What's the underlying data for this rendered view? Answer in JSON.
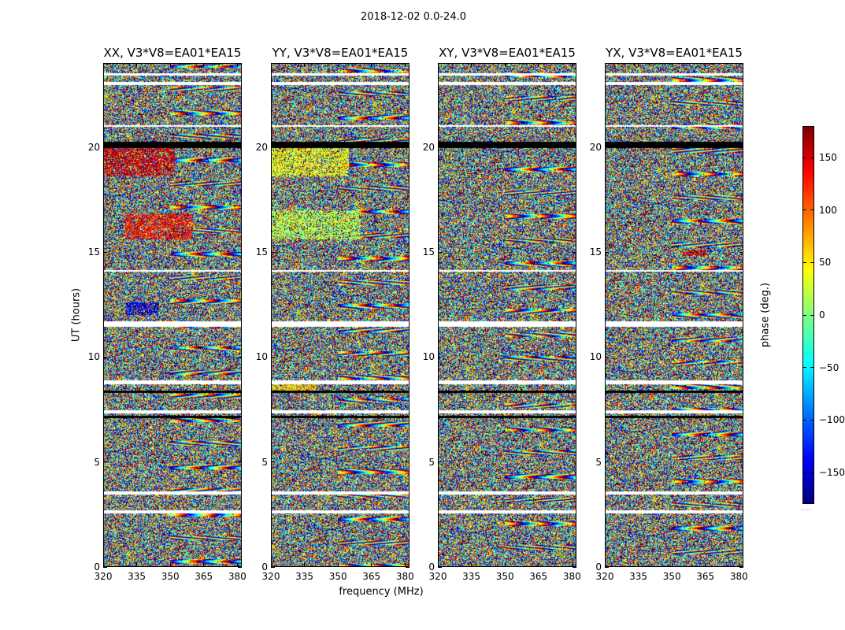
{
  "chart_data": {
    "type": "heatmap",
    "title": "2018-12-02 0.0-24.0",
    "xlabel": "frequency (MHz)",
    "ylabel": "UT (hours)",
    "xlim": [
      320,
      382
    ],
    "ylim": [
      0,
      24
    ],
    "xticks": [
      "320",
      "335",
      "350",
      "365",
      "380"
    ],
    "xtick_values": [
      320,
      335,
      350,
      365,
      380
    ],
    "yticks": [
      "0",
      "5",
      "10",
      "15",
      "20"
    ],
    "ytick_values": [
      0,
      5,
      10,
      15,
      20
    ],
    "panels": [
      {
        "name": "XX",
        "title": "XX, V3*V8=EA01*EA15"
      },
      {
        "name": "YY",
        "title": "YY, V3*V8=EA01*EA15"
      },
      {
        "name": "XY",
        "title": "XY, V3*V8=EA01*EA15"
      },
      {
        "name": "YX",
        "title": "YX, V3*V8=EA01*EA15"
      }
    ],
    "colorbar": {
      "label": "phase (deg.)",
      "range": [
        -180,
        180
      ],
      "colormap": "jet",
      "ticks": [
        "150",
        "100",
        "50",
        "0",
        "−50",
        "−100",
        "−150"
      ],
      "tick_values": [
        150,
        100,
        50,
        0,
        -50,
        -100,
        -150
      ],
      "footer": "....."
    },
    "blank_gaps_ut": [
      [
        2.55,
        2.7
      ],
      [
        3.45,
        3.6
      ],
      [
        7.3,
        7.45
      ],
      [
        8.7,
        8.9
      ],
      [
        11.45,
        11.7
      ],
      [
        14.05,
        14.15
      ],
      [
        20.95,
        21.05
      ],
      [
        22.95,
        23.1
      ],
      [
        23.4,
        23.5
      ]
    ],
    "flagged_rows_ut": [
      [
        2.6,
        2.65
      ],
      [
        7.1,
        7.2
      ],
      [
        8.3,
        8.4
      ],
      [
        19.95,
        20.25
      ]
    ],
    "coherent_regions": [
      {
        "panel": "XX",
        "ut": [
          18.6,
          20.2
        ],
        "freq": [
          320,
          352
        ],
        "phase": 150
      },
      {
        "panel": "XX",
        "ut": [
          15.6,
          16.8
        ],
        "freq": [
          330,
          360
        ],
        "phase": 130
      },
      {
        "panel": "XX",
        "ut": [
          12.0,
          12.6
        ],
        "freq": [
          330,
          345
        ],
        "phase": -150
      },
      {
        "panel": "YY",
        "ut": [
          15.6,
          17.0
        ],
        "freq": [
          320,
          360
        ],
        "phase": 20
      },
      {
        "panel": "YY",
        "ut": [
          18.6,
          20.2
        ],
        "freq": [
          320,
          355
        ],
        "phase": 40
      },
      {
        "panel": "YY",
        "ut": [
          8.4,
          8.9
        ],
        "freq": [
          320,
          340
        ],
        "phase": 60
      },
      {
        "panel": "YX",
        "ut": [
          14.8,
          15.1
        ],
        "freq": [
          355,
          365
        ],
        "phase": 150
      }
    ]
  }
}
